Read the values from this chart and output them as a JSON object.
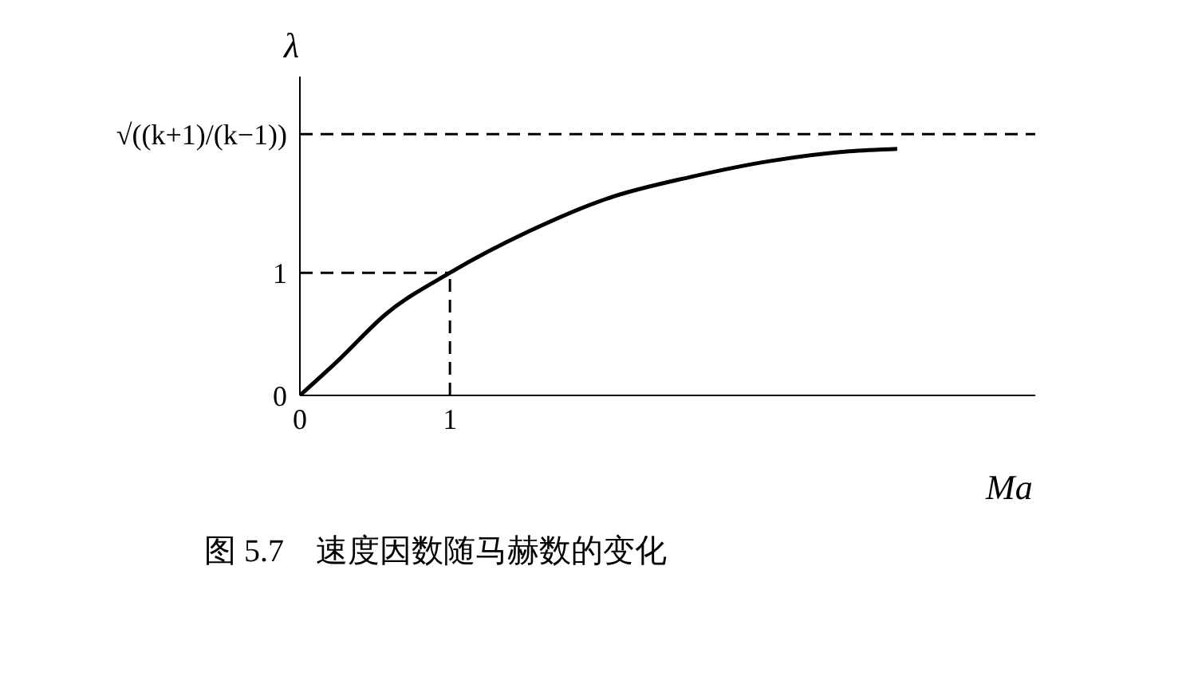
{
  "chart_data": {
    "type": "line",
    "xlabel": "Ma",
    "ylabel": "λ",
    "annotations": [
      "图 5.7　速度因数随马赫数的变化"
    ],
    "x": [
      0,
      0.26,
      0.57,
      1,
      1.53,
      2.06,
      2.6,
      3.13,
      3.66,
      3.98
    ],
    "series": [
      {
        "color": "#000000",
        "values": [
          0,
          0.29,
          0.66,
          1,
          1.34,
          1.61,
          1.78,
          1.91,
          1.99,
          2.01
        ]
      }
    ],
    "xlim": [
      0,
      4.9
    ],
    "xticks": [
      0,
      {
        "value": 1,
        "label": "1"
      }
    ],
    "ylim": [
      0,
      2.6
    ],
    "yticks": [
      0,
      1,
      {
        "value": 2.13,
        "label": "√((k+1)/(k−1))"
      }
    ],
    "ref_lines": [
      {
        "axis": "y",
        "value": 2.13,
        "label": null,
        "line_style": "dashed",
        "color": "#000000"
      },
      {
        "axis": "y",
        "value": 1,
        "label": null,
        "line_style": "dashed",
        "color": "#000000"
      },
      {
        "axis": "x",
        "value": 1,
        "label": null,
        "line_style": "dashed",
        "color": "#000000"
      }
    ],
    "grid": false,
    "legend": false,
    "marker": "none",
    "line_style": "solid"
  }
}
